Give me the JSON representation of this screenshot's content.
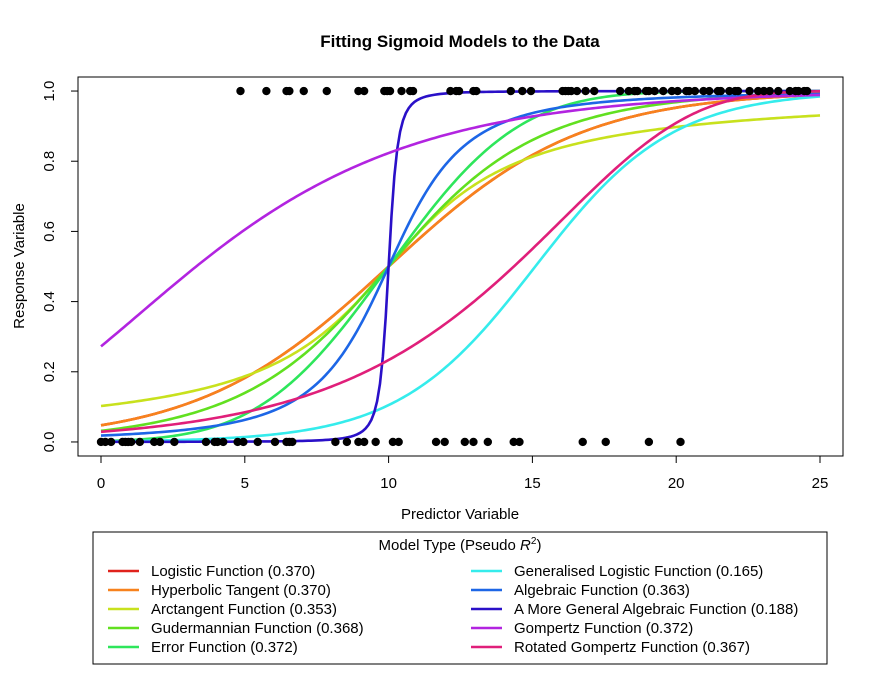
{
  "chart_data": {
    "type": "line",
    "title": "Fitting Sigmoid Models to the Data",
    "xlabel": "Predictor Variable",
    "ylabel": "Response Variable",
    "xlim": [
      -0.8,
      25.8
    ],
    "ylim": [
      -0.04,
      1.04
    ],
    "xticks": [
      "0",
      "5",
      "10",
      "15",
      "20",
      "25"
    ],
    "xtick_values": [
      0,
      5,
      10,
      15,
      20,
      25
    ],
    "yticks": [
      "0.0",
      "0.2",
      "0.4",
      "0.6",
      "0.8",
      "1.0"
    ],
    "ytick_values": [
      0,
      0.2,
      0.4,
      0.6,
      0.8,
      1.0
    ],
    "grid": false,
    "legend_title": "Model Type (Pseudo R²)",
    "legend_title_prefix": "Model Type (Pseudo ",
    "legend_title_r": "R",
    "legend_title_sup": "2",
    "legend_title_suffix": ")",
    "legend_position": "bottom",
    "points": {
      "y0": [
        0.0,
        0.15,
        0.35,
        0.75,
        0.85,
        0.95,
        1.05,
        1.35,
        1.85,
        2.05,
        2.55,
        3.65,
        3.95,
        4.05,
        4.25,
        4.75,
        4.95,
        5.45,
        6.05,
        6.45,
        6.55,
        6.65,
        8.15,
        8.55,
        8.95,
        9.15,
        9.55,
        10.15,
        10.35,
        11.65,
        11.95,
        12.65,
        12.95,
        13.45,
        14.35,
        14.55,
        16.75,
        17.55,
        19.05,
        20.15
      ],
      "y1": [
        4.85,
        5.75,
        6.45,
        6.55,
        7.05,
        7.85,
        8.95,
        9.15,
        9.85,
        9.95,
        10.05,
        10.45,
        10.75,
        10.85,
        12.15,
        12.35,
        12.45,
        12.95,
        13.05,
        14.25,
        14.65,
        14.95,
        16.05,
        16.15,
        16.25,
        16.35,
        16.55,
        16.85,
        17.15,
        18.05,
        18.35,
        18.55,
        18.65,
        18.95,
        19.05,
        19.25,
        19.55,
        19.85,
        20.05,
        20.35,
        20.45,
        20.65,
        20.95,
        21.15,
        21.45,
        21.55,
        21.85,
        22.05,
        22.15,
        22.55,
        22.85,
        23.05,
        23.25,
        23.55,
        23.95,
        24.15,
        24.25,
        24.45,
        24.55
      ]
    },
    "series": [
      {
        "name": "Logistic Function (0.370)",
        "color": "#e0221c",
        "model": "logistic",
        "params": [
          10,
          0.3
        ]
      },
      {
        "name": "Hyperbolic Tangent (0.370)",
        "color": "#f7821d",
        "model": "logistic",
        "params": [
          10,
          0.3
        ]
      },
      {
        "name": "Arctangent Function (0.353)",
        "color": "#c8e11d",
        "model": "atan",
        "params": [
          10,
          0.3
        ]
      },
      {
        "name": "Gudermannian Function (0.368)",
        "color": "#61e020",
        "model": "gd",
        "params": [
          10,
          0.3
        ]
      },
      {
        "name": "Error Function (0.372)",
        "color": "#2ee65b",
        "model": "erf",
        "params": [
          10,
          0.2
        ]
      },
      {
        "name": "Generalised Logistic Function (0.165)",
        "color": "#35ecec",
        "model": "logistic",
        "params": [
          15.1,
          0.42
        ]
      },
      {
        "name": "Algebraic Function (0.363)",
        "color": "#1d66e6",
        "model": "alg",
        "params": [
          10,
          0.36
        ]
      },
      {
        "name": "A More General Algebraic Function (0.188)",
        "color": "#2a10c8",
        "model": "genalg",
        "params": [
          10,
          3.0,
          0.5
        ]
      },
      {
        "name": "Gompertz Function (0.372)",
        "color": "#b224e0",
        "model": "gompertz",
        "params": [
          1.3,
          0.19
        ]
      },
      {
        "name": "Rotated Gompertz Function (0.367)",
        "color": "#e01f7a",
        "model": "rotgompertz",
        "params": [
          2.4,
          0.22
        ]
      }
    ]
  }
}
